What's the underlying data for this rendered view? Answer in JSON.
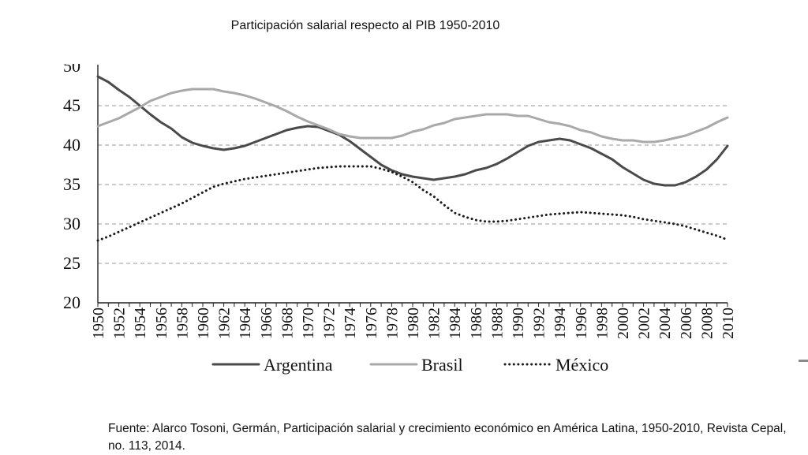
{
  "title": "Participación salarial respecto al PIB 1950-2010",
  "source_text": "Fuente: Alarco Tosoni, Germán, Participación salarial y crecimiento económico en América Latina, 1950-2010, Revista Cepal, no. 113, 2014.",
  "chart_data": {
    "type": "line",
    "title": "",
    "xlabel": "",
    "ylabel": "",
    "ylim": [
      20,
      50
    ],
    "xlim": [
      1950,
      2010
    ],
    "yticks": [
      20,
      25,
      30,
      35,
      40,
      45
    ],
    "top_tick_label": "50",
    "xticks": [
      "1950",
      "1952",
      "1954",
      "1956",
      "1958",
      "1960",
      "1962",
      "1964",
      "1966",
      "1968",
      "1970",
      "1972",
      "1974",
      "1976",
      "1978",
      "1980",
      "1982",
      "1984",
      "1986",
      "1988",
      "1990",
      "1992",
      "1994",
      "1996",
      "1998",
      "2000",
      "2002",
      "2004",
      "2006",
      "2008",
      "2010"
    ],
    "grid": "horizontal-dashed",
    "legend_position": "bottom",
    "series": [
      {
        "name": "Argentina",
        "color": "#4a4a4a",
        "style": "solid",
        "x": [
          1950,
          1951,
          1952,
          1953,
          1954,
          1955,
          1956,
          1957,
          1958,
          1959,
          1960,
          1961,
          1962,
          1963,
          1964,
          1965,
          1966,
          1967,
          1968,
          1969,
          1970,
          1971,
          1972,
          1973,
          1974,
          1975,
          1976,
          1977,
          1978,
          1979,
          1980,
          1981,
          1982,
          1983,
          1984,
          1985,
          1986,
          1987,
          1988,
          1989,
          1990,
          1991,
          1992,
          1993,
          1994,
          1995,
          1996,
          1997,
          1998,
          1999,
          2000,
          2001,
          2002,
          2003,
          2004,
          2005,
          2006,
          2007,
          2008,
          2009,
          2010
        ],
        "values": [
          48.7,
          48.0,
          47.0,
          46.1,
          45.0,
          43.9,
          42.9,
          42.1,
          41.0,
          40.3,
          39.9,
          39.6,
          39.4,
          39.6,
          39.9,
          40.4,
          40.9,
          41.4,
          41.9,
          42.2,
          42.4,
          42.3,
          41.8,
          41.3,
          40.5,
          39.5,
          38.5,
          37.5,
          36.8,
          36.3,
          36.0,
          35.8,
          35.6,
          35.8,
          36.0,
          36.3,
          36.8,
          37.1,
          37.6,
          38.3,
          39.1,
          39.9,
          40.4,
          40.6,
          40.8,
          40.6,
          40.1,
          39.6,
          38.9,
          38.2,
          37.2,
          36.4,
          35.6,
          35.1,
          34.9,
          34.9,
          35.3,
          36.0,
          36.9,
          38.2,
          39.9
        ]
      },
      {
        "name": "Brasil",
        "color": "#a9a9a9",
        "style": "solid",
        "x": [
          1950,
          1951,
          1952,
          1953,
          1954,
          1955,
          1956,
          1957,
          1958,
          1959,
          1960,
          1961,
          1962,
          1963,
          1964,
          1965,
          1966,
          1967,
          1968,
          1969,
          1970,
          1971,
          1972,
          1973,
          1974,
          1975,
          1976,
          1977,
          1978,
          1979,
          1980,
          1981,
          1982,
          1983,
          1984,
          1985,
          1986,
          1987,
          1988,
          1989,
          1990,
          1991,
          1992,
          1993,
          1994,
          1995,
          1996,
          1997,
          1998,
          1999,
          2000,
          2001,
          2002,
          2003,
          2004,
          2005,
          2006,
          2007,
          2008,
          2009,
          2010
        ],
        "values": [
          42.4,
          42.9,
          43.4,
          44.1,
          44.8,
          45.6,
          46.1,
          46.6,
          46.9,
          47.1,
          47.1,
          47.1,
          46.8,
          46.6,
          46.3,
          45.9,
          45.4,
          44.9,
          44.3,
          43.6,
          43.0,
          42.5,
          42.0,
          41.4,
          41.1,
          40.9,
          40.9,
          40.9,
          40.9,
          41.2,
          41.7,
          42.0,
          42.5,
          42.8,
          43.3,
          43.5,
          43.7,
          43.9,
          43.9,
          43.9,
          43.7,
          43.7,
          43.3,
          42.9,
          42.7,
          42.4,
          41.9,
          41.6,
          41.1,
          40.8,
          40.6,
          40.6,
          40.4,
          40.4,
          40.6,
          40.9,
          41.2,
          41.7,
          42.2,
          42.9,
          43.5
        ]
      },
      {
        "name": "México",
        "color": "#1a1a1a",
        "style": "dotted",
        "x": [
          1950,
          1951,
          1952,
          1953,
          1954,
          1955,
          1956,
          1957,
          1958,
          1959,
          1960,
          1961,
          1962,
          1963,
          1964,
          1965,
          1966,
          1967,
          1968,
          1969,
          1970,
          1971,
          1972,
          1973,
          1974,
          1975,
          1976,
          1977,
          1978,
          1979,
          1980,
          1981,
          1982,
          1983,
          1984,
          1985,
          1986,
          1987,
          1988,
          1989,
          1990,
          1991,
          1992,
          1993,
          1994,
          1995,
          1996,
          1997,
          1998,
          1999,
          2000,
          2001,
          2002,
          2003,
          2004,
          2005,
          2006,
          2007,
          2008,
          2009,
          2010
        ],
        "values": [
          27.9,
          28.4,
          29.0,
          29.6,
          30.2,
          30.8,
          31.4,
          32.0,
          32.6,
          33.3,
          34.0,
          34.7,
          35.1,
          35.4,
          35.7,
          35.9,
          36.1,
          36.3,
          36.5,
          36.7,
          36.9,
          37.1,
          37.2,
          37.3,
          37.3,
          37.3,
          37.3,
          37.0,
          36.6,
          36.0,
          35.3,
          34.3,
          33.5,
          32.4,
          31.4,
          30.9,
          30.5,
          30.3,
          30.3,
          30.4,
          30.6,
          30.8,
          31.0,
          31.2,
          31.3,
          31.4,
          31.5,
          31.4,
          31.3,
          31.2,
          31.1,
          30.9,
          30.6,
          30.4,
          30.2,
          30.0,
          29.7,
          29.3,
          28.9,
          28.5,
          28.0
        ]
      }
    ]
  }
}
